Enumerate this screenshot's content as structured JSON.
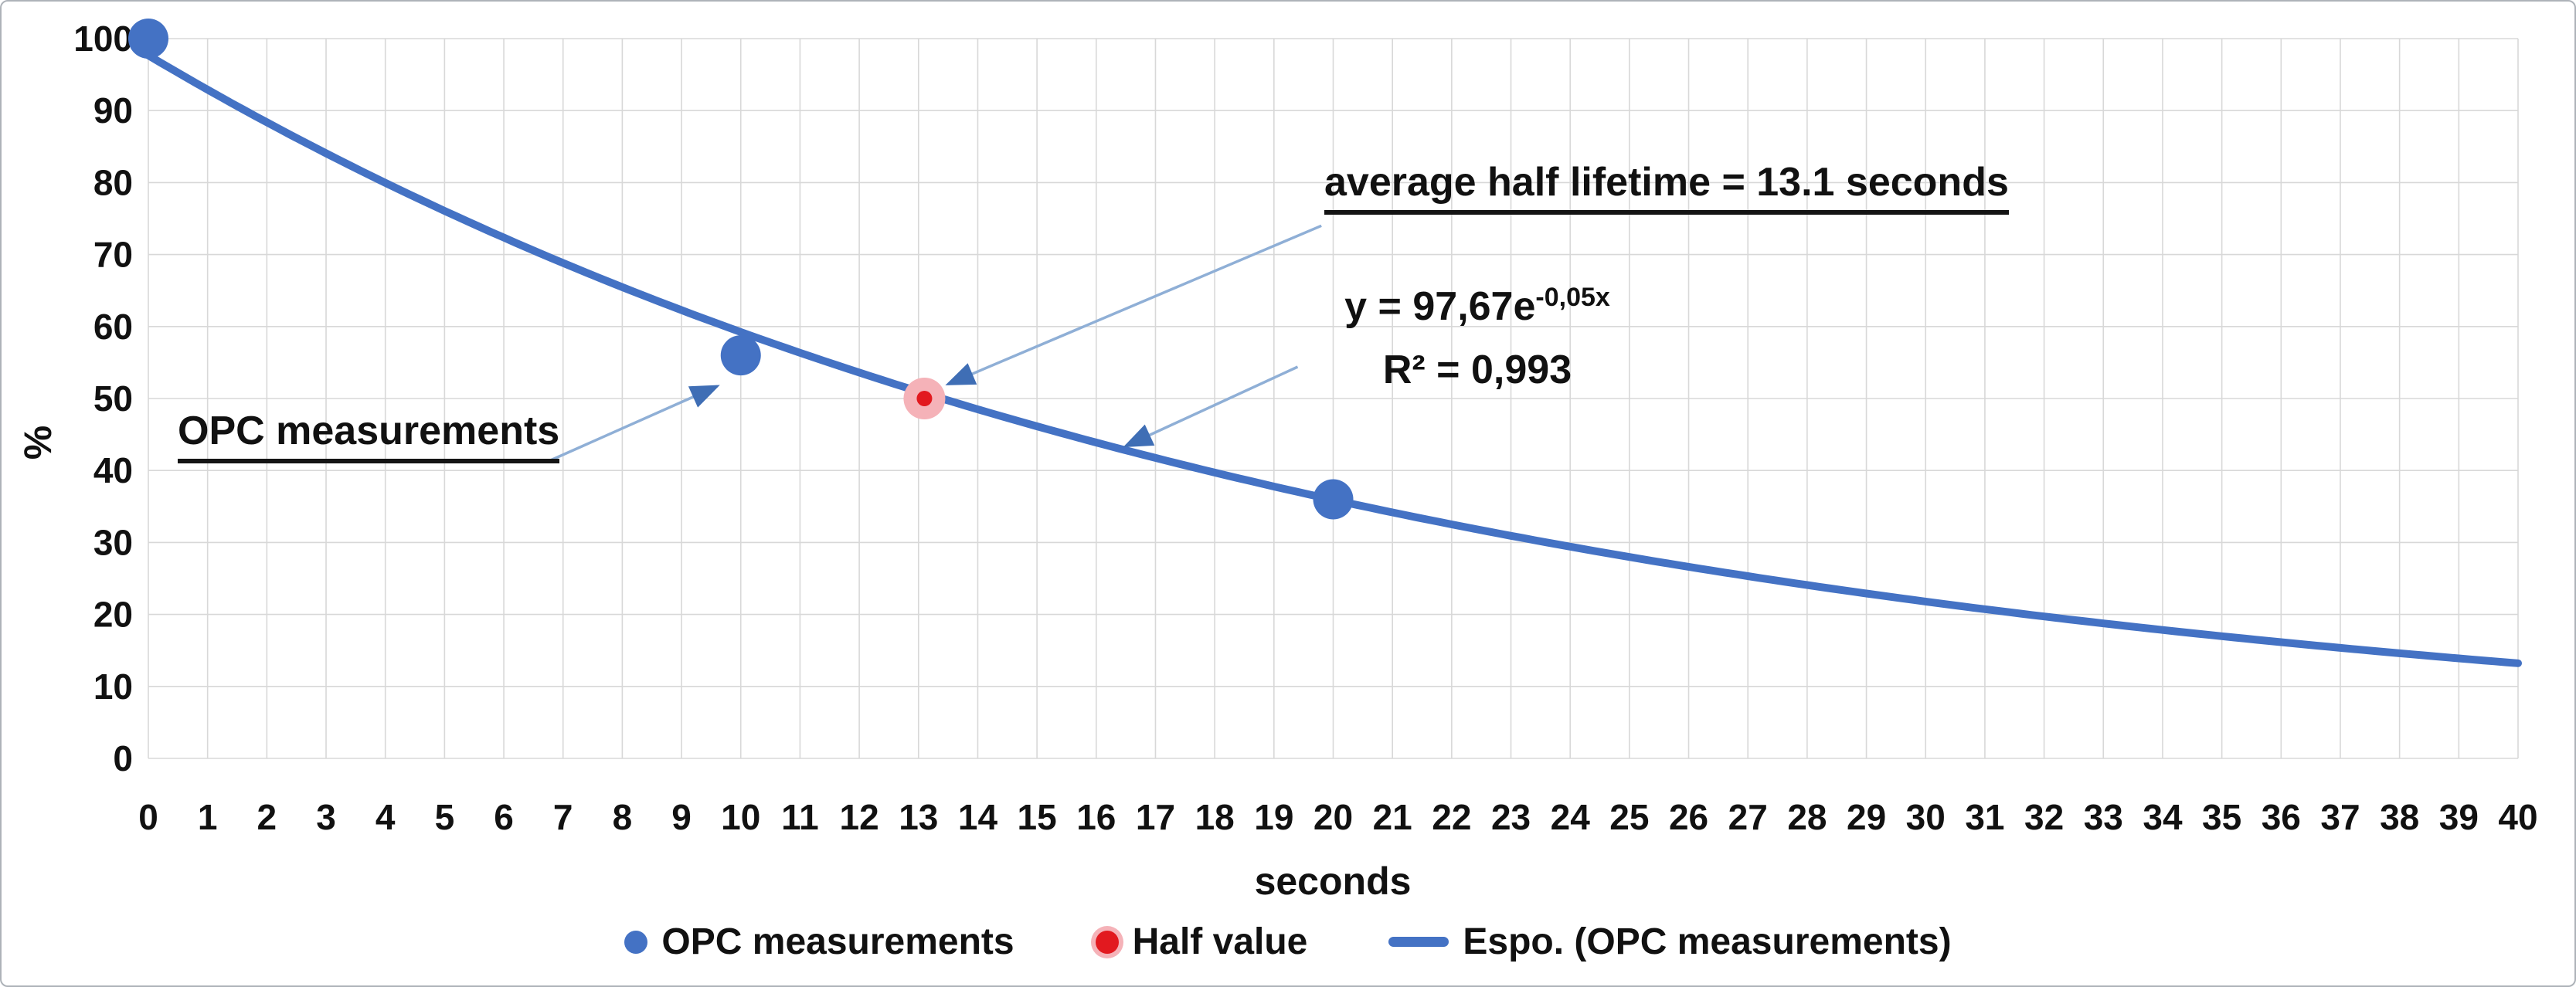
{
  "colors": {
    "accent_blue": "#4472C4",
    "point_red": "#E2191F",
    "point_red_halo": "#F5B2B8",
    "grid": "#D8D8D8",
    "arrow_line": "#8FAFD6",
    "arrow_head": "#3F6EB5",
    "text": "#111111",
    "card_border": "#AEB3B9"
  },
  "chart_data": {
    "type": "scatter",
    "title": "",
    "xlabel": "seconds",
    "ylabel": "%",
    "xlim": [
      0,
      40
    ],
    "ylim": [
      0,
      100
    ],
    "x_ticks": [
      0,
      1,
      2,
      3,
      4,
      5,
      6,
      7,
      8,
      9,
      10,
      11,
      12,
      13,
      14,
      15,
      16,
      17,
      18,
      19,
      20,
      21,
      22,
      23,
      24,
      25,
      26,
      27,
      28,
      29,
      30,
      31,
      32,
      33,
      34,
      35,
      36,
      37,
      38,
      39,
      40
    ],
    "y_ticks": [
      0,
      10,
      20,
      30,
      40,
      50,
      60,
      70,
      80,
      90,
      100
    ],
    "grid": true,
    "legend_position": "bottom",
    "series": [
      {
        "name": "OPC measurements",
        "kind": "scatter",
        "color": "#4472C4",
        "points": [
          [
            0,
            100
          ],
          [
            10,
            56
          ],
          [
            20,
            36
          ]
        ]
      },
      {
        "name": "Half value",
        "kind": "scatter",
        "color": "#E2191F",
        "halo_color": "#F5B2B8",
        "points": [
          [
            13.1,
            50
          ]
        ]
      },
      {
        "name": "Espo. (OPC measurements)",
        "kind": "exponential_trendline",
        "color": "#4472C4",
        "equation": "y = 97,67e^(-0,05x)",
        "a": 97.67,
        "k": -0.05,
        "r_squared": 0.993,
        "x_range": [
          0,
          40
        ]
      }
    ]
  },
  "annotations": {
    "half_lifetime": {
      "text": "average half lifetime = 13.1 seconds",
      "arrow_from": [
        19.8,
        74.0
      ],
      "arrow_to": [
        13.5,
        52.0
      ]
    },
    "equation": {
      "base": "y = 97,67e",
      "exponent": "-0,05x",
      "r_squared": "R² = 0,993",
      "arrow_from": [
        19.4,
        54.4
      ],
      "arrow_to": [
        16.5,
        43.4
      ]
    },
    "opc": {
      "text": "OPC measurements",
      "arrow_from": [
        6.73,
        41.2
      ],
      "arrow_to": [
        9.6,
        51.7
      ]
    }
  },
  "legend": {
    "items": [
      {
        "label": "OPC measurements",
        "marker": "dot",
        "color": "#4472C4"
      },
      {
        "label": "Half value",
        "marker": "dot",
        "color": "#E2191F",
        "halo": "#F5B2B8"
      },
      {
        "label": "Espo. (OPC measurements)",
        "marker": "line",
        "color": "#4472C4"
      }
    ]
  }
}
